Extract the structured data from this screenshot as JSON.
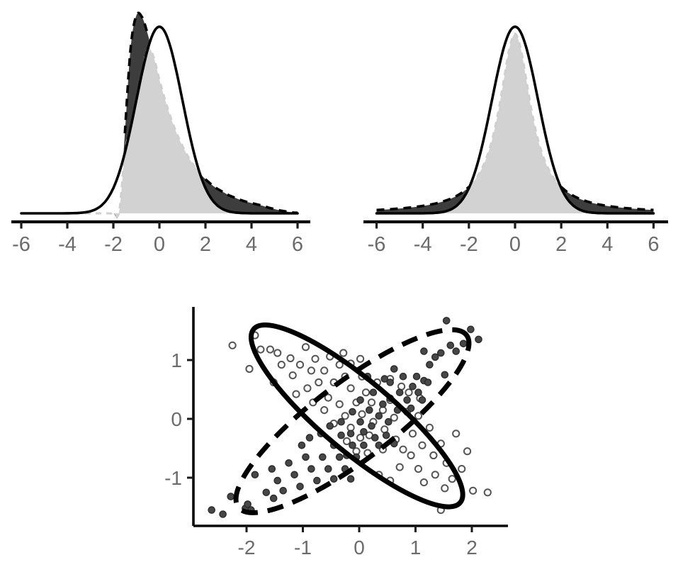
{
  "figure": {
    "background": "#ffffff",
    "description": "Three-panel statistical figure: two density-overlap plots (top) and a scatter plot with two correlation ellipses (bottom)"
  },
  "colors": {
    "curve": "#000000",
    "overlap_fill": "#d2d2d2",
    "excess_fill": "#3d3d3d",
    "overlap_edge": "#cfcfcf",
    "axis": "#0a0a0a",
    "tick": "#1a1a1a",
    "tick_label": "#6b6b6b",
    "open_point_stroke": "#555555",
    "filled_point_fill": "#474747",
    "filled_point_stroke": "#2b2b2b"
  },
  "chart_data": [
    {
      "id": "density-left",
      "type": "area",
      "title": "",
      "xlabel": "",
      "ylabel": "",
      "x_ticks": [
        -6,
        -4,
        -2,
        0,
        2,
        4,
        6
      ],
      "xlim": [
        -6,
        6
      ],
      "x_start": -6,
      "x_step": 0.25,
      "legend": "none",
      "fills": {
        "overlap": "light gray region = minimum of the two densities",
        "excess": "dark gray regions = dashed density exceeding solid density"
      },
      "series": [
        {
          "name": "solid-normal-density",
          "style": "solid",
          "values": [
            0,
            0,
            0,
            0,
            0,
            0,
            0,
            0,
            0.0001,
            0.0004,
            0.0009,
            0.002,
            0.0044,
            0.0091,
            0.0175,
            0.0317,
            0.054,
            0.0863,
            0.1295,
            0.1826,
            0.242,
            0.3011,
            0.3521,
            0.3867,
            0.3989,
            0.3867,
            0.3521,
            0.3011,
            0.242,
            0.1826,
            0.1295,
            0.0863,
            0.054,
            0.0317,
            0.0175,
            0.0091,
            0.0044,
            0.002,
            0.0009,
            0.0004,
            0.0001,
            0,
            0,
            0,
            0,
            0,
            0,
            0,
            0
          ]
        },
        {
          "name": "dashed-right-skewed-density",
          "style": "dashed",
          "values": [
            0,
            0,
            0,
            0,
            0,
            0,
            0,
            0,
            0,
            0,
            0,
            0,
            0,
            0,
            0,
            0,
            0,
            0.003,
            0.171,
            0.353,
            0.423,
            0.419,
            0.382,
            0.334,
            0.286,
            0.242,
            0.204,
            0.171,
            0.144,
            0.121,
            0.102,
            0.086,
            0.073,
            0.062,
            0.053,
            0.046,
            0.039,
            0.034,
            0.029,
            0.025,
            0.022,
            0.019,
            0.016,
            0.012,
            0.009,
            0.006,
            0.004,
            0.002,
            0.001
          ]
        }
      ]
    },
    {
      "id": "density-right",
      "type": "area",
      "title": "",
      "xlabel": "",
      "ylabel": "",
      "x_ticks": [
        -6,
        -4,
        -2,
        0,
        2,
        4,
        6
      ],
      "xlim": [
        -6,
        6
      ],
      "x_start": -6,
      "x_step": 0.25,
      "legend": "none",
      "fills": {
        "overlap": "light gray region = minimum of the two densities",
        "excess": "dark gray tails = dashed heavy-tailed density exceeding solid density"
      },
      "series": [
        {
          "name": "solid-normal-density",
          "style": "solid",
          "values": [
            0,
            0,
            0,
            0,
            0,
            0,
            0,
            0,
            0.0001,
            0.0004,
            0.0009,
            0.002,
            0.0044,
            0.0091,
            0.0175,
            0.0317,
            0.054,
            0.0863,
            0.1295,
            0.1826,
            0.242,
            0.3011,
            0.3521,
            0.3867,
            0.3989,
            0.3867,
            0.3521,
            0.3011,
            0.242,
            0.1826,
            0.1295,
            0.0863,
            0.054,
            0.0317,
            0.0175,
            0.0091,
            0.0044,
            0.002,
            0.0009,
            0.0004,
            0.0001,
            0,
            0,
            0,
            0,
            0,
            0,
            0,
            0
          ]
        },
        {
          "name": "dashed-heavy-tailed-density",
          "style": "dashed",
          "values": [
            0.0072,
            0.0078,
            0.0085,
            0.0094,
            0.0103,
            0.0114,
            0.0126,
            0.0141,
            0.0158,
            0.0179,
            0.0204,
            0.0235,
            0.0273,
            0.032,
            0.0381,
            0.0459,
            0.0564,
            0.0705,
            0.0899,
            0.1174,
            0.1565,
            0.2112,
            0.2815,
            0.3517,
            0.384,
            0.3517,
            0.2815,
            0.2112,
            0.1565,
            0.1174,
            0.0899,
            0.0705,
            0.0564,
            0.0459,
            0.0381,
            0.032,
            0.0273,
            0.0235,
            0.0204,
            0.0179,
            0.0158,
            0.0141,
            0.0126,
            0.0114,
            0.0103,
            0.0094,
            0.0085,
            0.0078,
            0.0072
          ]
        }
      ]
    },
    {
      "id": "scatter-ellipses",
      "type": "scatter",
      "title": "",
      "xlabel": "",
      "ylabel": "",
      "x_ticks": [
        -2,
        -1,
        0,
        1,
        2
      ],
      "y_ticks": [
        1,
        0,
        -1
      ],
      "xlim": [
        -2.85,
        2.6
      ],
      "ylim": [
        -1.85,
        1.8
      ],
      "legend": "none",
      "ellipses": [
        {
          "name": "solid-ellipse",
          "style": "solid",
          "cx": -0.04,
          "cy": 0.05,
          "semi_major": 2.35,
          "semi_minor": 0.62,
          "angle_deg": -40
        },
        {
          "name": "dashed-ellipse",
          "style": "dashed",
          "cx": -0.12,
          "cy": -0.04,
          "semi_major": 2.49,
          "semi_minor": 0.68,
          "angle_deg": 37
        }
      ],
      "series": [
        {
          "name": "open-points",
          "marker": "open-circle",
          "points": [
            [
              -2.25,
              1.25
            ],
            [
              -1.85,
              1.42
            ],
            [
              -1.95,
              0.85
            ],
            [
              -1.75,
              1.18
            ],
            [
              -1.58,
              1.18
            ],
            [
              -1.45,
              1.12
            ],
            [
              -1.38,
              0.92
            ],
            [
              -1.52,
              0.62
            ],
            [
              -1.22,
              1.03
            ],
            [
              -1.18,
              0.74
            ],
            [
              -1.05,
              0.92
            ],
            [
              -0.95,
              1.22
            ],
            [
              -0.85,
              0.82
            ],
            [
              -0.78,
              1.02
            ],
            [
              -0.72,
              0.62
            ],
            [
              -0.92,
              0.52
            ],
            [
              -1.12,
              0.42
            ],
            [
              -0.62,
              0.82
            ],
            [
              -0.52,
              1.06
            ],
            [
              -0.28,
              1.12
            ],
            [
              0.02,
              1.02
            ],
            [
              -0.45,
              0.62
            ],
            [
              -0.35,
              0.92
            ],
            [
              -0.25,
              0.72
            ],
            [
              -0.15,
              0.94
            ],
            [
              -0.55,
              0.36
            ],
            [
              -0.35,
              0.25
            ],
            [
              -0.62,
              0.15
            ],
            [
              -0.82,
              0.28
            ],
            [
              -0.15,
              0.52
            ],
            [
              0.05,
              0.72
            ],
            [
              0.12,
              0.45
            ],
            [
              -0.05,
              0.28
            ],
            [
              0.32,
              0.62
            ],
            [
              0.55,
              0.68
            ],
            [
              0.75,
              0.55
            ],
            [
              0.88,
              0.45
            ],
            [
              1.08,
              0.35
            ],
            [
              -0.25,
              0.05
            ],
            [
              -0.45,
              -0.08
            ],
            [
              -0.15,
              -0.15
            ],
            [
              0.05,
              0.08
            ],
            [
              0.22,
              0.28
            ],
            [
              0.42,
              0.15
            ],
            [
              0.25,
              -0.05
            ],
            [
              0.02,
              -0.32
            ],
            [
              -0.22,
              -0.38
            ],
            [
              0.18,
              -0.28
            ],
            [
              0.45,
              -0.18
            ],
            [
              0.62,
              0.02
            ],
            [
              0.55,
              0.32
            ],
            [
              0.85,
              0.12
            ],
            [
              1.05,
              0.05
            ],
            [
              -0.05,
              -0.55
            ],
            [
              0.65,
              -0.35
            ],
            [
              0.42,
              -0.52
            ],
            [
              0.15,
              -0.58
            ],
            [
              0.78,
              -0.52
            ],
            [
              0.95,
              -0.25
            ],
            [
              1.25,
              -0.15
            ],
            [
              0.92,
              -0.62
            ],
            [
              1.12,
              -0.45
            ],
            [
              0.72,
              -0.82
            ],
            [
              1.32,
              -0.62
            ],
            [
              1.05,
              -0.85
            ],
            [
              1.45,
              -0.42
            ],
            [
              1.55,
              -0.75
            ],
            [
              1.35,
              -0.95
            ],
            [
              1.65,
              -1.02
            ],
            [
              1.82,
              -0.85
            ],
            [
              1.52,
              -1.18
            ],
            [
              1.15,
              -1.08
            ],
            [
              2.02,
              -1.22
            ],
            [
              1.45,
              -1.55
            ],
            [
              2.28,
              -1.25
            ],
            [
              1.72,
              -0.25
            ],
            [
              1.92,
              -0.55
            ],
            [
              0.35,
              -0.95
            ],
            [
              0.55,
              -1.05
            ]
          ]
        },
        {
          "name": "filled-points",
          "marker": "filled-circle",
          "points": [
            [
              -2.62,
              -1.55
            ],
            [
              -2.42,
              -1.62
            ],
            [
              -2.02,
              -1.52
            ],
            [
              -1.92,
              -1.55
            ],
            [
              -1.98,
              -1.45
            ],
            [
              -2.28,
              -1.32
            ],
            [
              -1.65,
              -1.25
            ],
            [
              -1.85,
              -0.95
            ],
            [
              -1.55,
              -0.85
            ],
            [
              -1.45,
              -1.05
            ],
            [
              -1.35,
              -1.22
            ],
            [
              -1.52,
              -1.35
            ],
            [
              -1.25,
              -0.75
            ],
            [
              -1.15,
              -0.95
            ],
            [
              -1.05,
              -1.15
            ],
            [
              -0.95,
              -0.65
            ],
            [
              -1.02,
              -0.45
            ],
            [
              -0.85,
              -0.85
            ],
            [
              -0.75,
              -1.05
            ],
            [
              -0.65,
              -0.65
            ],
            [
              -0.55,
              -0.85
            ],
            [
              -0.45,
              -1.02
            ],
            [
              -0.88,
              -0.32
            ],
            [
              -0.68,
              -0.25
            ],
            [
              -0.35,
              -0.65
            ],
            [
              -0.25,
              -0.85
            ],
            [
              -0.15,
              -1.02
            ],
            [
              -0.45,
              -0.45
            ],
            [
              -0.52,
              -0.12
            ],
            [
              -0.32,
              -0.28
            ],
            [
              -0.12,
              -0.45
            ],
            [
              -0.22,
              -0.62
            ],
            [
              -0.05,
              -0.65
            ],
            [
              0.08,
              -0.45
            ],
            [
              -0.15,
              -0.25
            ],
            [
              -0.32,
              -0.05
            ],
            [
              -0.12,
              0.12
            ],
            [
              0.02,
              -0.05
            ],
            [
              0.08,
              -0.22
            ],
            [
              0.28,
              -0.32
            ],
            [
              0.22,
              -0.12
            ],
            [
              0.35,
              -0.45
            ],
            [
              0.48,
              -0.28
            ],
            [
              0.18,
              0.15
            ],
            [
              0.02,
              0.32
            ],
            [
              0.35,
              0.05
            ],
            [
              0.52,
              -0.05
            ],
            [
              0.42,
              0.25
            ],
            [
              0.25,
              0.45
            ],
            [
              0.62,
              -0.42
            ],
            [
              0.15,
              0.72
            ],
            [
              0.55,
              0.35
            ],
            [
              0.68,
              0.15
            ],
            [
              0.72,
              0.45
            ],
            [
              0.55,
              0.62
            ],
            [
              0.85,
              0.32
            ],
            [
              0.95,
              0.55
            ],
            [
              0.78,
              0.72
            ],
            [
              1.02,
              0.72
            ],
            [
              0.62,
              0.85
            ],
            [
              0.45,
              0.68
            ],
            [
              0.92,
              0.18
            ],
            [
              1.12,
              0.32
            ],
            [
              1.05,
              0.45
            ],
            [
              1.15,
              0.65
            ],
            [
              1.25,
              0.92
            ],
            [
              1.35,
              1.05
            ],
            [
              1.22,
              0.62
            ],
            [
              1.52,
              0.75
            ],
            [
              1.45,
              1.12
            ],
            [
              1.62,
              1.25
            ],
            [
              1.72,
              1.15
            ],
            [
              1.55,
              1.67
            ],
            [
              1.98,
              1.52
            ],
            [
              1.85,
              1.28
            ],
            [
              1.15,
              1.15
            ],
            [
              2.12,
              1.35
            ]
          ]
        }
      ]
    }
  ]
}
